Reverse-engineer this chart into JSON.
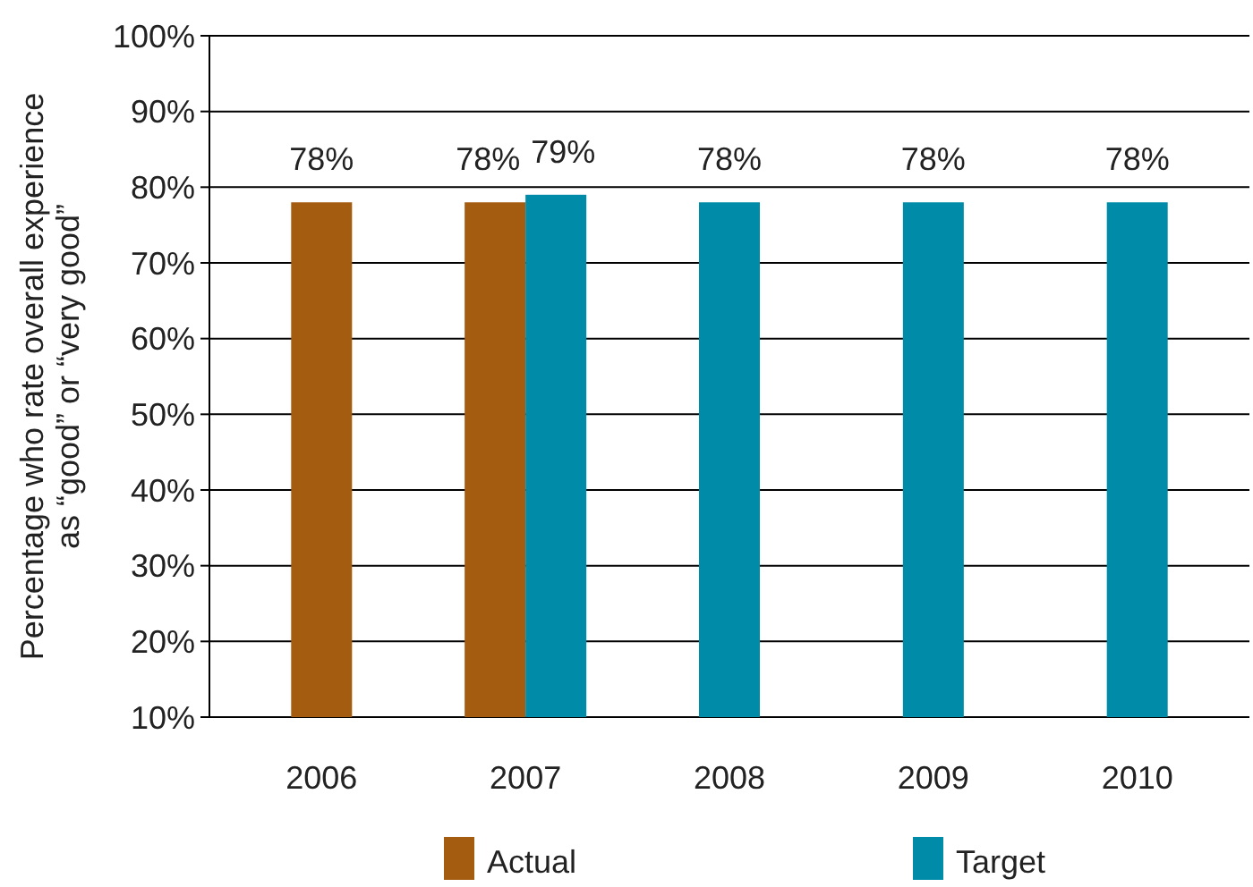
{
  "chart_data": {
    "type": "bar",
    "ylabel": "Percentage who rate overall experience\nas “good” or “very good”",
    "categories": [
      "2006",
      "2007",
      "2008",
      "2009",
      "2010"
    ],
    "series": [
      {
        "name": "Actual",
        "color": "#a45c10",
        "values": [
          78,
          78,
          null,
          null,
          null
        ],
        "value_labels": [
          "78%",
          "78%",
          null,
          null,
          null
        ]
      },
      {
        "name": "Target",
        "color": "#008ca8",
        "values": [
          null,
          79,
          78,
          78,
          78
        ],
        "value_labels": [
          null,
          "79%",
          "78%",
          "78%",
          "78%"
        ]
      }
    ],
    "ylim": [
      10,
      100
    ],
    "yticks": [
      {
        "value": 10,
        "label": "10%"
      },
      {
        "value": 20,
        "label": "20%"
      },
      {
        "value": 30,
        "label": "30%"
      },
      {
        "value": 40,
        "label": "40%"
      },
      {
        "value": 50,
        "label": "50%"
      },
      {
        "value": 60,
        "label": "60%"
      },
      {
        "value": 70,
        "label": "70%"
      },
      {
        "value": 80,
        "label": "80%"
      },
      {
        "value": 90,
        "label": "90%"
      },
      {
        "value": 100,
        "label": "100%"
      }
    ],
    "grid": "y",
    "legend": "bottom"
  }
}
